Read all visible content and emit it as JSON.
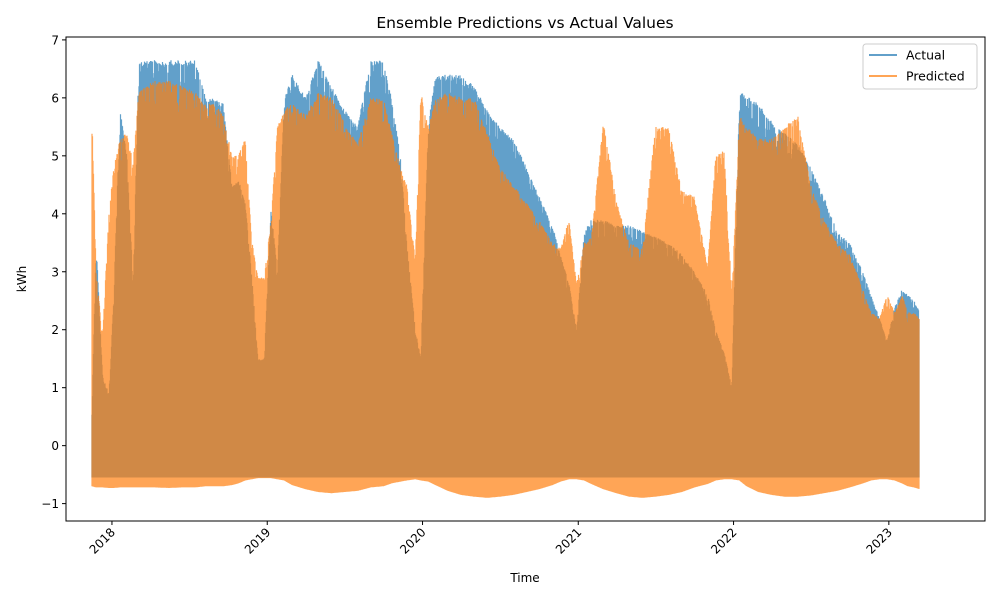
{
  "chart_data": {
    "type": "line",
    "title": "Ensemble Predictions vs Actual Values",
    "xlabel": "Time",
    "ylabel": "kWh",
    "xlim": [
      "2017-09-15",
      "2023-08-15"
    ],
    "ylim": [
      -1.3,
      7.05
    ],
    "x_ticks": [
      "2018",
      "2019",
      "2020",
      "2021",
      "2022",
      "2023"
    ],
    "y_ticks": [
      -1,
      0,
      1,
      2,
      3,
      4,
      5,
      6,
      7
    ],
    "grid": false,
    "legend_position": "top-right",
    "series": [
      {
        "name": "Actual",
        "color": "#1f77b4",
        "alpha": 0.7,
        "envelope": {
          "x": [
            "2017-11-15",
            "2017-11-25",
            "2017-12-10",
            "2017-12-25",
            "2018-01-05",
            "2018-01-20",
            "2018-02-05",
            "2018-02-20",
            "2018-03-05",
            "2018-03-20",
            "2018-04-10",
            "2018-05-15",
            "2018-06-15",
            "2018-07-15",
            "2018-08-10",
            "2018-09-01",
            "2018-09-20",
            "2018-10-10",
            "2018-10-25",
            "2018-11-10",
            "2018-11-25",
            "2018-12-10",
            "2018-12-25",
            "2019-01-10",
            "2019-01-25",
            "2019-02-10",
            "2019-03-01",
            "2019-04-01",
            "2019-05-01",
            "2019-06-01",
            "2019-07-01",
            "2019-08-01",
            "2019-09-01",
            "2019-10-01",
            "2019-10-20",
            "2019-11-10",
            "2019-11-25",
            "2019-12-15",
            "2019-12-28",
            "2020-01-15",
            "2020-02-01",
            "2020-03-01",
            "2020-04-01",
            "2020-05-01",
            "2020-06-01",
            "2020-07-01",
            "2020-08-01",
            "2020-09-01",
            "2020-10-01",
            "2020-11-01",
            "2020-11-20",
            "2020-12-10",
            "2020-12-28",
            "2021-01-15",
            "2021-02-01",
            "2021-03-01",
            "2021-04-01",
            "2021-05-01",
            "2021-06-01",
            "2021-07-01",
            "2021-08-01",
            "2021-09-01",
            "2021-10-01",
            "2021-11-01",
            "2021-11-20",
            "2021-12-10",
            "2021-12-28",
            "2022-01-15",
            "2022-02-01",
            "2022-03-01",
            "2022-04-01",
            "2022-05-01",
            "2022-06-01",
            "2022-07-01",
            "2022-08-01",
            "2022-09-01",
            "2022-10-01",
            "2022-11-01",
            "2022-11-20",
            "2022-12-10",
            "2022-12-28",
            "2023-01-15",
            "2023-02-01",
            "2023-02-15",
            "2023-03-01",
            "2023-03-15"
          ],
          "max": [
            0.5,
            3.5,
            1.2,
            0.9,
            2.5,
            5.8,
            5.0,
            2.8,
            6.6,
            6.65,
            6.65,
            6.65,
            6.65,
            6.65,
            6.0,
            6.0,
            5.9,
            4.5,
            4.6,
            4.2,
            3.0,
            1.5,
            1.5,
            4.1,
            3.0,
            6.0,
            6.4,
            6.0,
            6.65,
            6.2,
            5.8,
            5.5,
            6.65,
            6.65,
            6.0,
            5.0,
            3.5,
            2.0,
            1.5,
            5.6,
            6.4,
            6.4,
            6.4,
            6.2,
            5.8,
            5.5,
            5.3,
            4.8,
            4.3,
            3.8,
            3.3,
            2.8,
            2.0,
            3.7,
            3.9,
            3.9,
            3.8,
            3.8,
            3.7,
            3.6,
            3.5,
            3.3,
            3.0,
            2.6,
            2.0,
            1.6,
            1.0,
            6.1,
            6.05,
            5.9,
            5.6,
            5.4,
            5.2,
            4.8,
            4.3,
            3.7,
            3.5,
            3.0,
            2.6,
            2.2,
            1.8,
            2.4,
            2.7,
            2.6,
            2.5,
            2.3
          ],
          "min": [
            -0.55,
            -0.55,
            -0.55,
            -0.55,
            -0.55,
            -0.55,
            -0.55,
            -0.55,
            -0.55,
            -0.55,
            -0.55,
            -0.55,
            -0.55,
            -0.55,
            -0.55,
            -0.55,
            -0.55,
            -0.55,
            -0.55,
            -0.55,
            -0.55,
            -0.55,
            -0.55,
            -0.55,
            -0.55,
            -0.55,
            -0.55,
            -0.55,
            -0.55,
            -0.55,
            -0.55,
            -0.55,
            -0.55,
            -0.55,
            -0.55,
            -0.55,
            -0.55,
            -0.55,
            -0.55,
            -0.55,
            -0.55,
            -0.55,
            -0.55,
            -0.55,
            -0.55,
            -0.55,
            -0.55,
            -0.55,
            -0.55,
            -0.55,
            -0.55,
            -0.55,
            -0.55,
            -0.55,
            -0.55,
            -0.55,
            -0.55,
            -0.55,
            -0.55,
            -0.55,
            -0.55,
            -0.55,
            -0.55,
            -0.55,
            -0.55,
            -0.55,
            -0.55,
            -0.55,
            -0.55,
            -0.55,
            -0.55,
            -0.55,
            -0.55,
            -0.55,
            -0.55,
            -0.55,
            -0.55,
            -0.55,
            -0.55,
            -0.55,
            -0.55,
            -0.55,
            -0.55,
            -0.55,
            -0.55,
            -0.55
          ]
        }
      },
      {
        "name": "Predicted",
        "color": "#ff7f0e",
        "alpha": 0.7,
        "envelope": {
          "x": [
            "2017-11-15",
            "2017-11-25",
            "2017-12-10",
            "2017-12-25",
            "2018-01-05",
            "2018-01-20",
            "2018-02-05",
            "2018-02-20",
            "2018-03-05",
            "2018-03-20",
            "2018-04-10",
            "2018-05-15",
            "2018-06-15",
            "2018-07-15",
            "2018-08-10",
            "2018-09-01",
            "2018-09-20",
            "2018-10-10",
            "2018-10-25",
            "2018-11-10",
            "2018-11-25",
            "2018-12-10",
            "2018-12-25",
            "2019-01-10",
            "2019-01-25",
            "2019-02-10",
            "2019-03-01",
            "2019-04-01",
            "2019-05-01",
            "2019-06-01",
            "2019-07-01",
            "2019-08-01",
            "2019-09-01",
            "2019-10-01",
            "2019-10-20",
            "2019-11-10",
            "2019-11-25",
            "2019-12-15",
            "2019-12-28",
            "2020-01-15",
            "2020-02-01",
            "2020-03-01",
            "2020-04-01",
            "2020-05-01",
            "2020-06-01",
            "2020-07-01",
            "2020-08-01",
            "2020-09-01",
            "2020-10-01",
            "2020-11-01",
            "2020-11-20",
            "2020-12-10",
            "2020-12-28",
            "2021-01-15",
            "2021-02-01",
            "2021-03-01",
            "2021-04-01",
            "2021-05-01",
            "2021-06-01",
            "2021-07-01",
            "2021-08-01",
            "2021-09-01",
            "2021-10-01",
            "2021-11-01",
            "2021-11-20",
            "2021-12-10",
            "2021-12-28",
            "2022-01-15",
            "2022-02-01",
            "2022-03-01",
            "2022-04-01",
            "2022-05-01",
            "2022-06-01",
            "2022-07-01",
            "2022-08-01",
            "2022-09-01",
            "2022-10-01",
            "2022-11-01",
            "2022-11-20",
            "2022-12-10",
            "2022-12-28",
            "2023-01-15",
            "2023-02-01",
            "2023-02-15",
            "2023-03-01",
            "2023-03-15"
          ],
          "max": [
            5.7,
            3.0,
            1.9,
            4.0,
            4.8,
            5.3,
            5.4,
            4.9,
            6.1,
            6.2,
            6.3,
            6.3,
            6.2,
            6.1,
            5.9,
            5.9,
            5.7,
            5.0,
            5.0,
            5.3,
            3.6,
            2.9,
            2.9,
            3.9,
            5.5,
            5.8,
            5.9,
            5.7,
            6.1,
            6.0,
            5.6,
            5.2,
            6.0,
            6.0,
            5.4,
            4.8,
            4.5,
            3.2,
            6.1,
            5.5,
            6.0,
            6.1,
            6.0,
            6.0,
            5.4,
            4.8,
            4.5,
            4.2,
            3.9,
            3.5,
            3.4,
            3.9,
            2.8,
            3.5,
            3.6,
            5.6,
            4.2,
            3.5,
            3.4,
            5.5,
            5.5,
            4.4,
            4.3,
            3.1,
            5.0,
            5.1,
            2.6,
            5.7,
            5.5,
            5.3,
            5.3,
            5.5,
            5.7,
            4.5,
            3.9,
            3.5,
            3.3,
            2.7,
            2.3,
            2.2,
            2.6,
            2.3,
            2.6,
            2.3,
            2.3,
            2.2
          ],
          "min": [
            -0.7,
            -0.72,
            -0.72,
            -0.73,
            -0.73,
            -0.72,
            -0.72,
            -0.72,
            -0.72,
            -0.72,
            -0.72,
            -0.73,
            -0.72,
            -0.72,
            -0.7,
            -0.7,
            -0.7,
            -0.68,
            -0.65,
            -0.6,
            -0.58,
            -0.56,
            -0.56,
            -0.56,
            -0.58,
            -0.6,
            -0.68,
            -0.75,
            -0.8,
            -0.82,
            -0.8,
            -0.78,
            -0.72,
            -0.7,
            -0.65,
            -0.62,
            -0.6,
            -0.58,
            -0.6,
            -0.62,
            -0.68,
            -0.78,
            -0.85,
            -0.88,
            -0.9,
            -0.88,
            -0.85,
            -0.8,
            -0.75,
            -0.68,
            -0.62,
            -0.58,
            -0.58,
            -0.6,
            -0.66,
            -0.75,
            -0.82,
            -0.88,
            -0.9,
            -0.88,
            -0.85,
            -0.8,
            -0.72,
            -0.66,
            -0.6,
            -0.58,
            -0.58,
            -0.6,
            -0.7,
            -0.8,
            -0.85,
            -0.88,
            -0.88,
            -0.86,
            -0.82,
            -0.78,
            -0.72,
            -0.65,
            -0.6,
            -0.58,
            -0.58,
            -0.6,
            -0.65,
            -0.7,
            -0.72,
            -0.75
          ]
        }
      }
    ]
  }
}
